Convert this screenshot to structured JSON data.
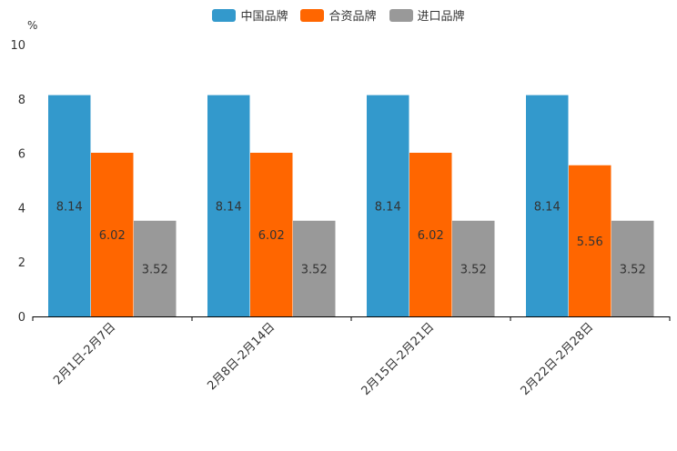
{
  "chart_data": {
    "type": "bar",
    "unit_label": "%",
    "categories": [
      "2月1日-2月7日",
      "2月8日-2月14日",
      "2月15日-2月21日",
      "2月22日-2月28日"
    ],
    "series": [
      {
        "name": "中国品牌",
        "color": "#3399CC",
        "values": [
          8.14,
          8.14,
          8.14,
          8.14
        ],
        "labels": [
          "8.14",
          "8.14",
          "8.14",
          "8.14"
        ]
      },
      {
        "name": "合资品牌",
        "color": "#FF6600",
        "values": [
          6.02,
          6.02,
          6.02,
          5.56
        ],
        "labels": [
          "6.02",
          "6.02",
          "6.02",
          "5.56"
        ]
      },
      {
        "name": "进口品牌",
        "color": "#999999",
        "values": [
          3.52,
          3.52,
          3.52,
          3.52
        ],
        "labels": [
          "3.52",
          "3.52",
          "3.52",
          "3.52"
        ]
      }
    ],
    "ylim": [
      0,
      10
    ],
    "yticks": [
      "0",
      "2",
      "4",
      "6",
      "8",
      "10"
    ],
    "legend_position": "top-center",
    "grid": false
  }
}
